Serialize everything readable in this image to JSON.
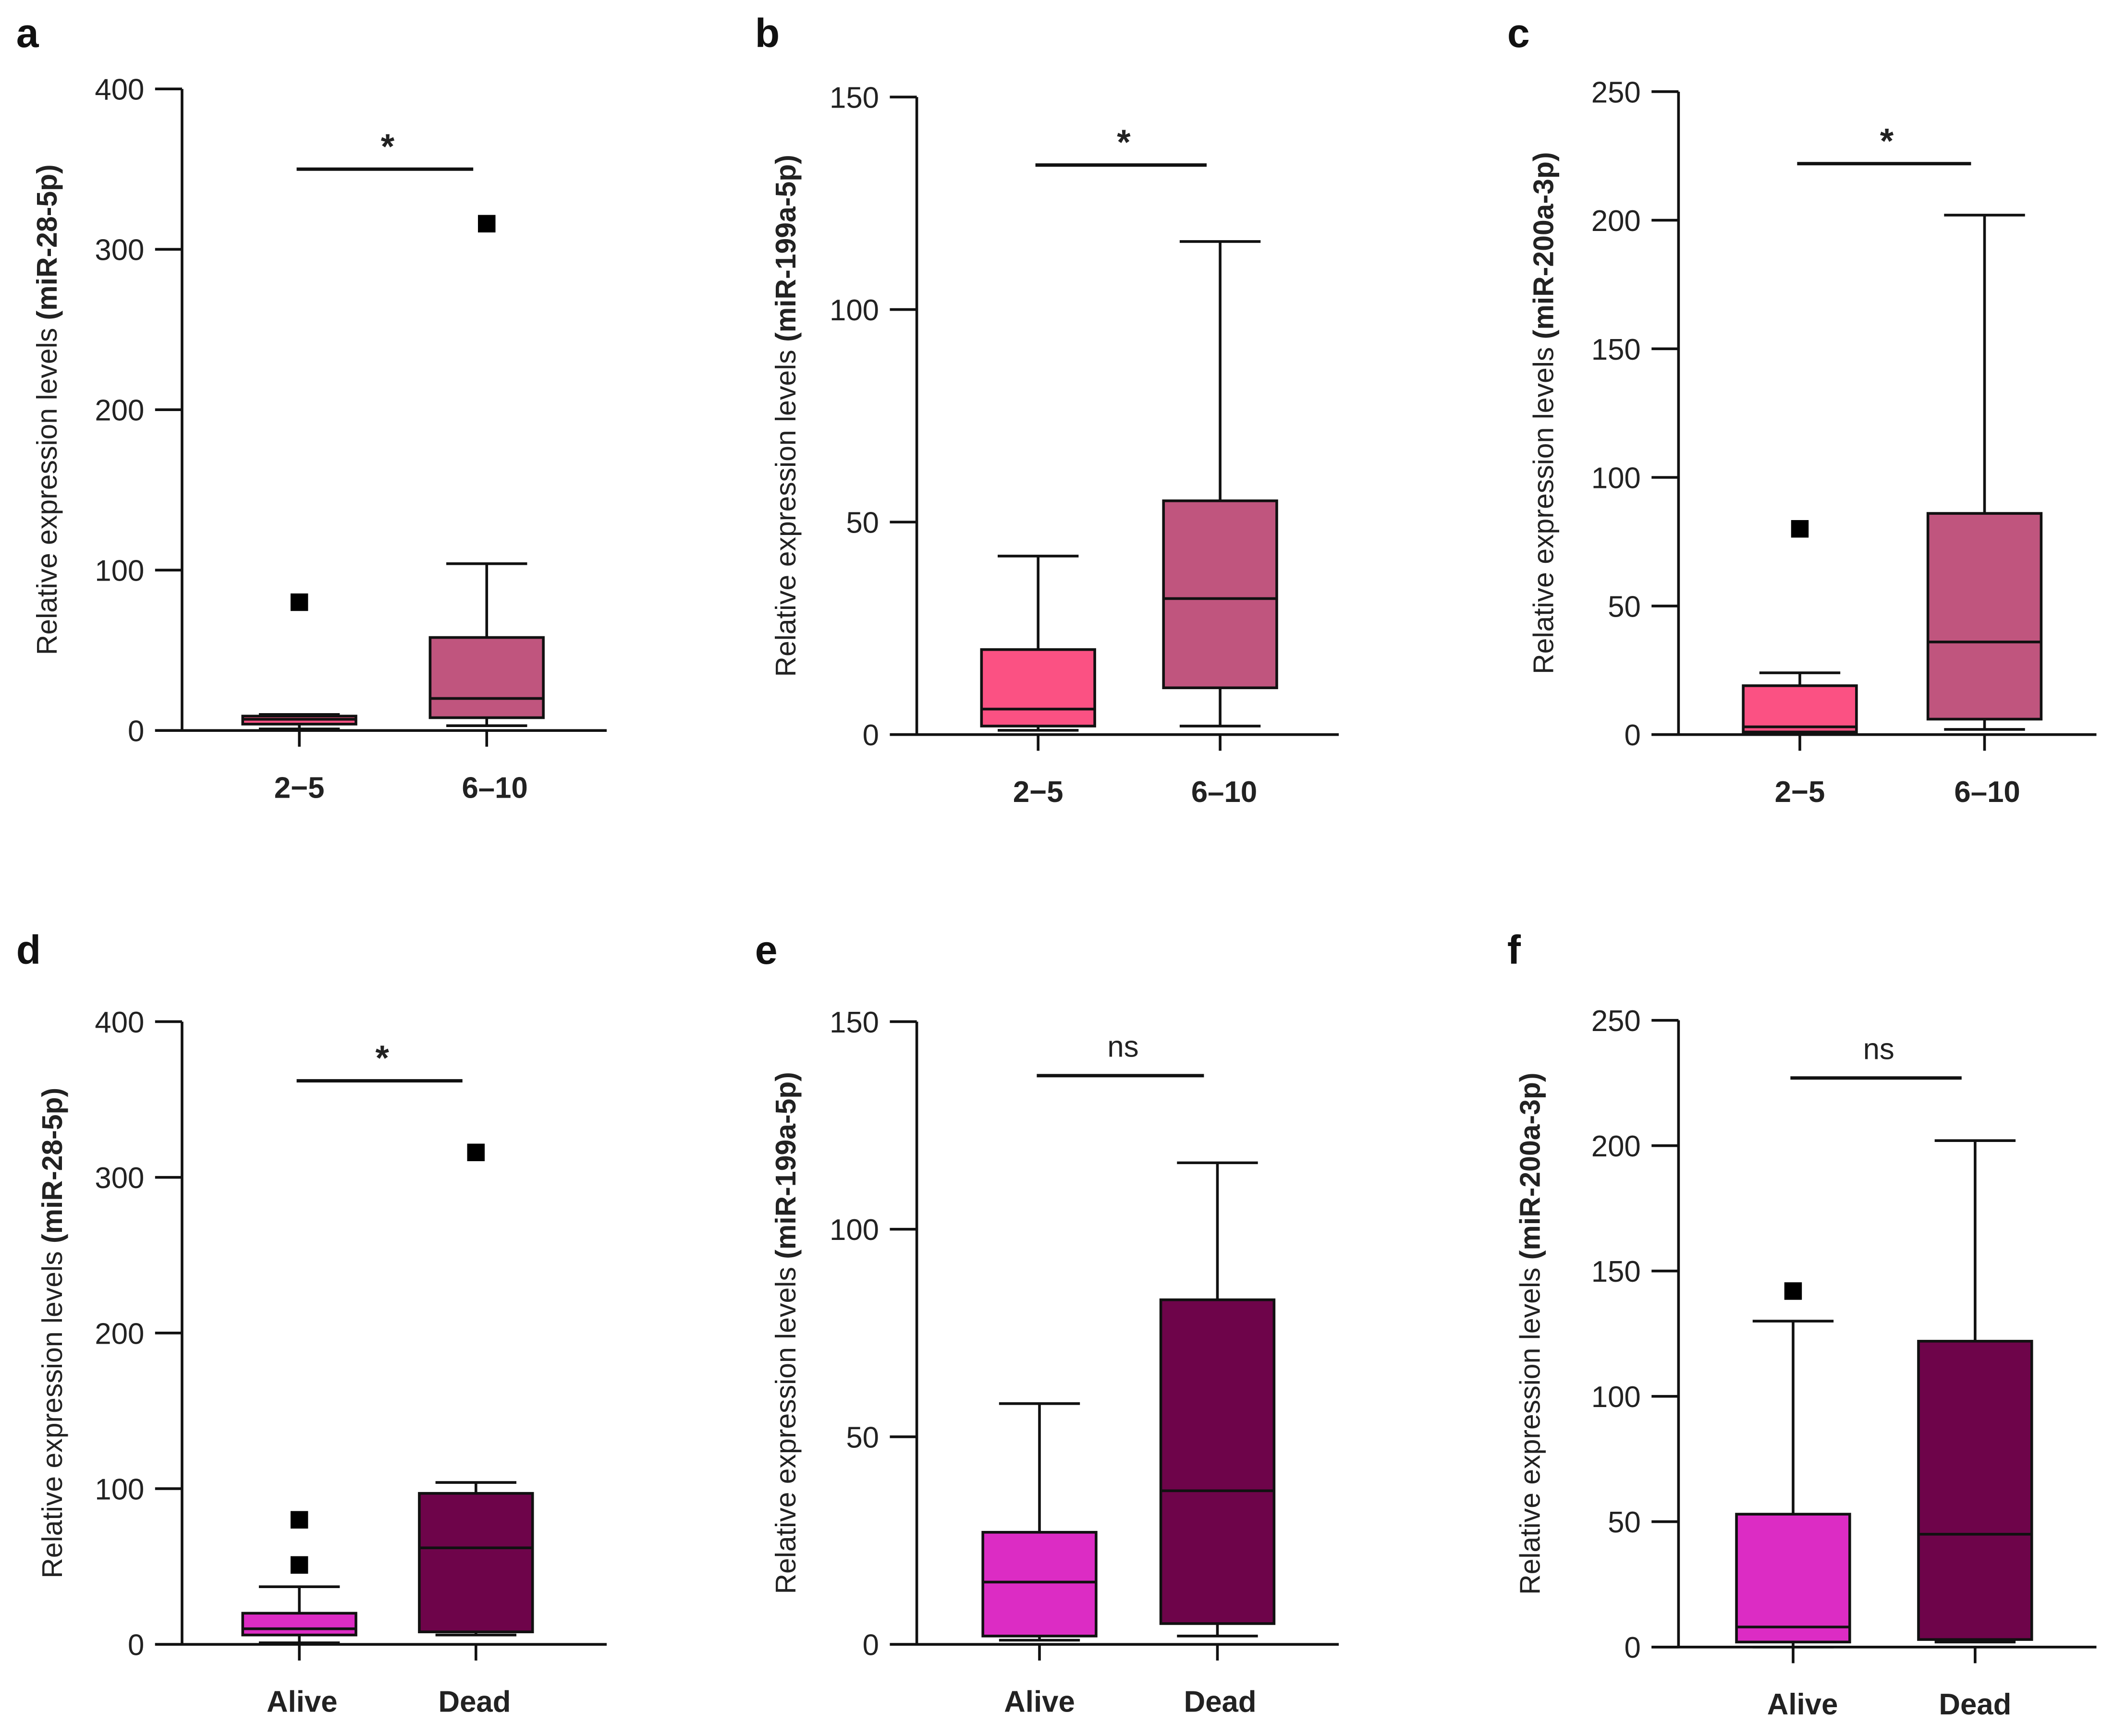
{
  "chart_data": [
    {
      "panel": "a",
      "type": "box",
      "ylabel_pre": "Relative expression levels ",
      "ylabel_bold": "(miR-28-5p)",
      "ylim": [
        0,
        400
      ],
      "yticks": [
        0,
        100,
        200,
        300,
        400
      ],
      "categories": [
        "2−5",
        "6–10"
      ],
      "colors": [
        "#fb5183",
        "#c0557e"
      ],
      "boxes": [
        {
          "min": 1,
          "q1": 4,
          "median": 7,
          "q3": 9,
          "max": 10,
          "outliers": [
            80
          ]
        },
        {
          "min": 3,
          "q1": 8,
          "median": 20,
          "q3": 58,
          "max": 104,
          "outliers": [
            316
          ]
        }
      ],
      "significance": {
        "label": "*",
        "y": 350
      }
    },
    {
      "panel": "b",
      "type": "box",
      "ylabel_pre": "Relative expression levels ",
      "ylabel_bold": "(miR-199a-5p)",
      "ylim": [
        0,
        150
      ],
      "yticks": [
        0,
        50,
        100,
        150
      ],
      "categories": [
        "2−5",
        "6–10"
      ],
      "colors": [
        "#fb5183",
        "#c0557e"
      ],
      "boxes": [
        {
          "min": 1,
          "q1": 2,
          "median": 6,
          "q3": 20,
          "max": 42,
          "outliers": []
        },
        {
          "min": 2,
          "q1": 11,
          "median": 32,
          "q3": 55,
          "max": 116,
          "outliers": []
        }
      ],
      "significance": {
        "label": "*",
        "y": 134
      }
    },
    {
      "panel": "c",
      "type": "box",
      "ylabel_pre": "Relative expression levels ",
      "ylabel_bold": "(miR-200a-3p)",
      "ylim": [
        0,
        250
      ],
      "yticks": [
        0,
        50,
        100,
        150,
        200,
        250
      ],
      "categories": [
        "2−5",
        "6–10"
      ],
      "colors": [
        "#fb5183",
        "#c0557e"
      ],
      "boxes": [
        {
          "min": 1,
          "q1": 1,
          "median": 3,
          "q3": 19,
          "max": 24,
          "outliers": [
            80
          ]
        },
        {
          "min": 2,
          "q1": 6,
          "median": 36,
          "q3": 86,
          "max": 202,
          "outliers": []
        }
      ],
      "significance": {
        "label": "*",
        "y": 222
      }
    },
    {
      "panel": "d",
      "type": "box",
      "ylabel_pre": "Relative expression levels ",
      "ylabel_bold": "(miR-28-5p)",
      "ylim": [
        0,
        400
      ],
      "yticks": [
        0,
        100,
        200,
        300,
        400
      ],
      "categories": [
        "Alive",
        "Dead"
      ],
      "colors": [
        "#dc2cc4",
        "#6e044a"
      ],
      "boxes": [
        {
          "min": 1,
          "q1": 6,
          "median": 10,
          "q3": 20,
          "max": 37,
          "outliers": [
            80,
            51
          ]
        },
        {
          "min": 6,
          "q1": 8,
          "median": 62,
          "q3": 97,
          "max": 104,
          "outliers": [
            316
          ]
        }
      ],
      "significance": {
        "label": "*",
        "y": 362
      }
    },
    {
      "panel": "e",
      "type": "box",
      "ylabel_pre": "Relative expression levels ",
      "ylabel_bold": "(miR-199a-5p)",
      "ylim": [
        0,
        150
      ],
      "yticks": [
        0,
        50,
        100,
        150
      ],
      "categories": [
        "Alive",
        "Dead"
      ],
      "colors": [
        "#dc2cc4",
        "#6e044a"
      ],
      "boxes": [
        {
          "min": 1,
          "q1": 2,
          "median": 15,
          "q3": 27,
          "max": 58,
          "outliers": []
        },
        {
          "min": 2,
          "q1": 5,
          "median": 37,
          "q3": 83,
          "max": 116,
          "outliers": []
        }
      ],
      "significance": {
        "label": "ns",
        "y": 137
      }
    },
    {
      "panel": "f",
      "type": "box",
      "ylabel_pre": "Relative expression levels ",
      "ylabel_bold": "(miR-200a-3p)",
      "ylim": [
        0,
        250
      ],
      "yticks": [
        0,
        50,
        100,
        150,
        200,
        250
      ],
      "categories": [
        "Alive",
        "Dead"
      ],
      "colors": [
        "#dc2cc4",
        "#6e044a"
      ],
      "boxes": [
        {
          "min": 0,
          "q1": 2,
          "median": 8,
          "q3": 53,
          "max": 130,
          "outliers": [
            142
          ]
        },
        {
          "min": 2,
          "q1": 3,
          "median": 45,
          "q3": 122,
          "max": 202,
          "outliers": []
        }
      ],
      "significance": {
        "label": "ns",
        "y": 227
      }
    }
  ]
}
